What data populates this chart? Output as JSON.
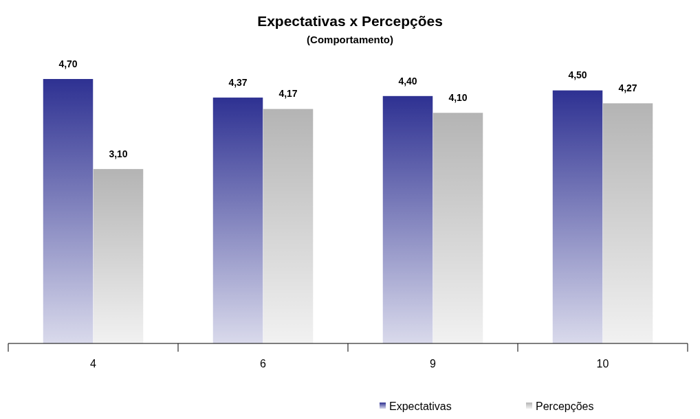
{
  "chart_data": {
    "type": "bar",
    "title": "Expectativas x Percepções",
    "subtitle": "(Comportamento)",
    "categories": [
      "4",
      "6",
      "9",
      "10"
    ],
    "series": [
      {
        "name": "Expectativas",
        "color": "#2e3192",
        "values": [
          4.7,
          4.37,
          4.4,
          4.5
        ],
        "value_labels": [
          "4,70",
          "4,37",
          "4,40",
          "4,50"
        ]
      },
      {
        "name": "Percepções",
        "color": "#b4b4b4",
        "values": [
          3.1,
          4.17,
          4.1,
          4.27
        ],
        "value_labels": [
          "3,10",
          "4,17",
          "4,10",
          "4,27"
        ]
      }
    ],
    "legend": "bottom",
    "grid": false
  }
}
